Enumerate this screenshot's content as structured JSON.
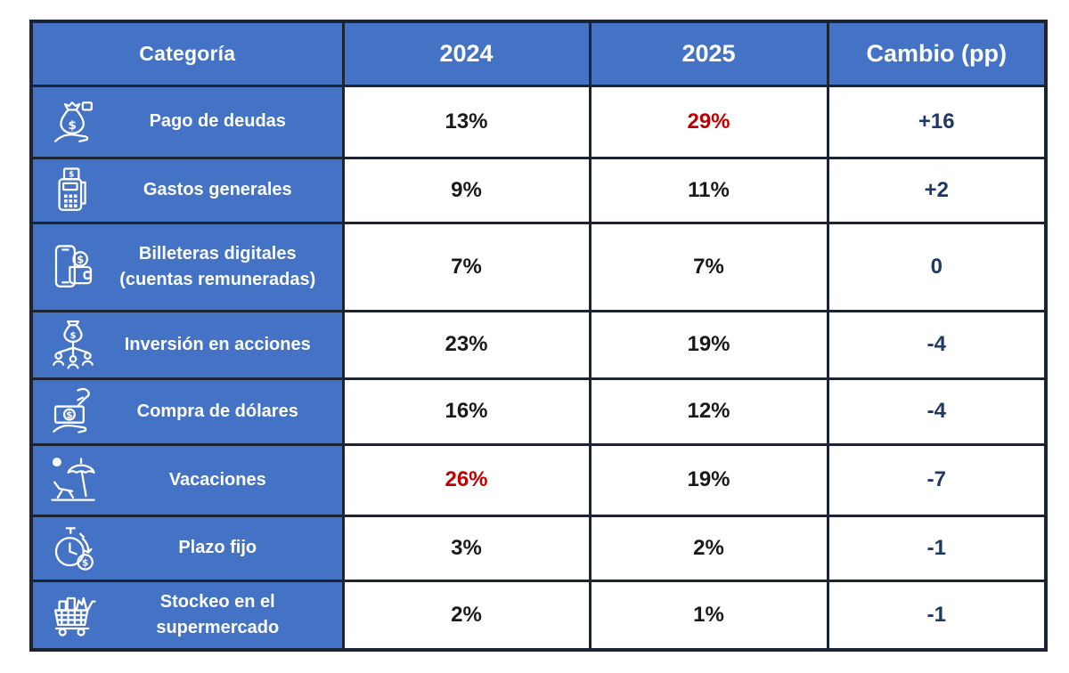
{
  "table": {
    "headers": [
      "Categoría",
      "2024",
      "2025",
      "Cambio (pp)"
    ],
    "rows": [
      {
        "icon": "money-bag-hand-icon",
        "category": "Pago de deudas",
        "y2024": "13%",
        "y2025": "29%",
        "change": "+16",
        "y2024_red": false,
        "y2025_red": true
      },
      {
        "icon": "pos-terminal-icon",
        "category": "Gastos generales",
        "y2024": "9%",
        "y2025": "11%",
        "change": "+2",
        "y2024_red": false,
        "y2025_red": false
      },
      {
        "icon": "phone-wallet-icon",
        "category": "Billeteras digitales (cuentas remuneradas)",
        "y2024": "7%",
        "y2025": "7%",
        "change": "0",
        "y2024_red": false,
        "y2025_red": false
      },
      {
        "icon": "investment-network-icon",
        "category": "Inversión en acciones",
        "y2024": "23%",
        "y2025": "19%",
        "change": "-4",
        "y2024_red": false,
        "y2025_red": false
      },
      {
        "icon": "money-hand-icon",
        "category": "Compra de dólares",
        "y2024": "16%",
        "y2025": "12%",
        "change": "-4",
        "y2024_red": false,
        "y2025_red": false
      },
      {
        "icon": "beach-vacation-icon",
        "category": "Vacaciones",
        "y2024": "26%",
        "y2025": "19%",
        "change": "-7",
        "y2024_red": true,
        "y2025_red": false
      },
      {
        "icon": "stopwatch-money-icon",
        "category": "Plazo fijo",
        "y2024": "3%",
        "y2025": "2%",
        "change": "-1",
        "y2024_red": false,
        "y2025_red": false
      },
      {
        "icon": "shopping-cart-icon",
        "category": "Stockeo en el supermercado",
        "y2024": "2%",
        "y2025": "1%",
        "change": "-1",
        "y2024_red": false,
        "y2025_red": false
      }
    ]
  },
  "colors": {
    "header_bg": "#4472C4",
    "category_bg": "#4472C4",
    "header_text": "#FFFFFF",
    "value_text": "#1A1A1A",
    "highlight_red": "#C00000",
    "change_text": "#1F3864",
    "border": "#1C2433"
  },
  "chart_data": {
    "type": "table",
    "title": "",
    "columns": [
      "Categoría",
      "2024",
      "2025",
      "Cambio (pp)"
    ],
    "categories": [
      "Pago de deudas",
      "Gastos generales",
      "Billeteras digitales (cuentas remuneradas)",
      "Inversión en acciones",
      "Compra de dólares",
      "Vacaciones",
      "Plazo fijo",
      "Stockeo en el supermercado"
    ],
    "series": [
      {
        "name": "2024",
        "values": [
          13,
          9,
          7,
          23,
          16,
          26,
          3,
          2
        ]
      },
      {
        "name": "2025",
        "values": [
          29,
          11,
          7,
          19,
          12,
          19,
          2,
          1
        ]
      },
      {
        "name": "Cambio (pp)",
        "values": [
          16,
          2,
          0,
          -4,
          -4,
          -7,
          -1,
          -1
        ]
      }
    ],
    "units": "percent of respondents",
    "highlighted_cells": [
      {
        "row": "Pago de deudas",
        "column": "2025",
        "value": 29,
        "color": "#C00000"
      },
      {
        "row": "Vacaciones",
        "column": "2024",
        "value": 26,
        "color": "#C00000"
      }
    ]
  }
}
